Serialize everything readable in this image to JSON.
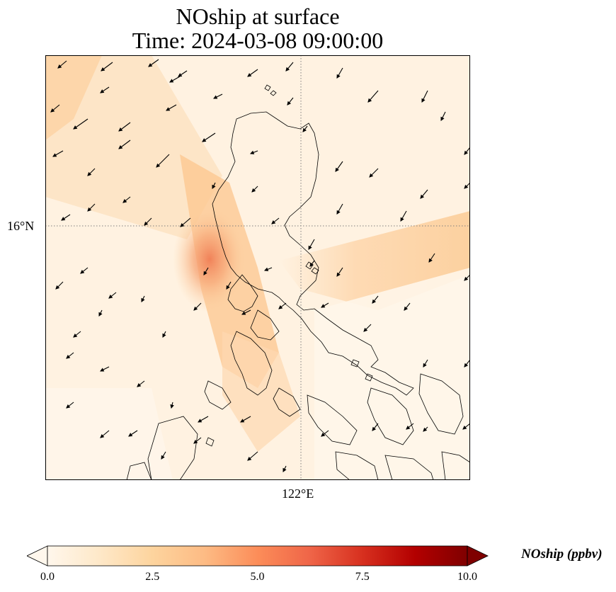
{
  "title": {
    "line1": "NOship at surface",
    "line2": "Time: 2024-03-08 09:00:00"
  },
  "axes": {
    "lat_tick": "16°N",
    "lon_tick": "122°E",
    "gridlines": "dotted"
  },
  "colorbar": {
    "label": "NOship (ppbv)",
    "min": 0.0,
    "max": 10.0,
    "ticks": [
      "0.0",
      "2.5",
      "5.0",
      "7.5",
      "10.0"
    ],
    "extend": "both",
    "colormap": "OrRd",
    "colors": [
      "#fff7ec",
      "#fee8c8",
      "#fdd49e",
      "#fdbb84",
      "#fc8d59",
      "#ef6548",
      "#d7301f",
      "#b30000",
      "#7f0000"
    ]
  },
  "map": {
    "field_colors": {
      "background": "#fff2e1",
      "high": "#f08a5c",
      "medium": "#fdd3a4",
      "low": "#fff7ec"
    },
    "coastline_color": "#000000",
    "vector_color": "#000000"
  }
}
